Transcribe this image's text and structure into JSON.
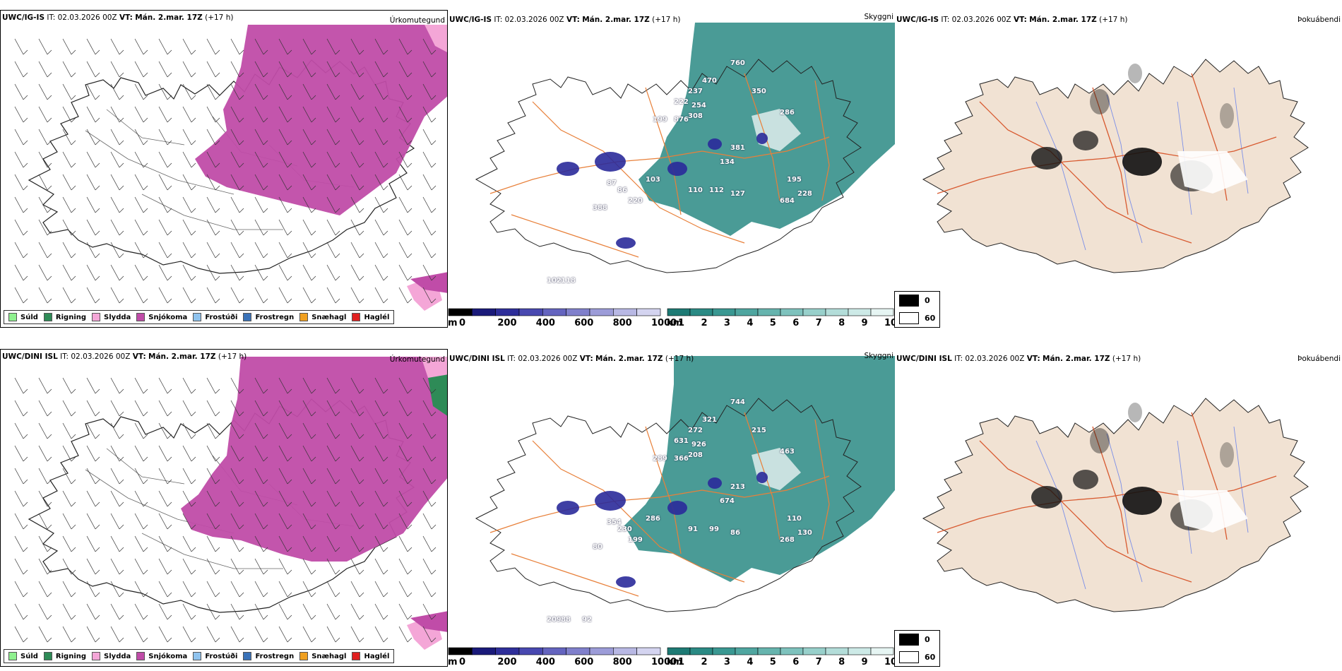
{
  "rows": [
    {
      "precip": {
        "model": "UWC/IG-IS",
        "it_label": "IT:",
        "it_value": "02.03.2026 00Z",
        "vt_label": "VT:",
        "vt_value": "Mán. 2.mar. 17Z",
        "lead": "(+17 h)",
        "title": "Úrkomutegund"
      },
      "cloud": {
        "model": "UWC/IG-IS",
        "it_label": "IT:",
        "it_value": "02.03.2026 00Z",
        "vt_label": "VT:",
        "vt_value": "Mán. 2.mar. 17Z",
        "lead": "(+17 h)",
        "title": "Skyggni",
        "labels": [
          "760",
          "470",
          "237",
          "222",
          "254",
          "350",
          "199",
          "876",
          "308",
          "286",
          "381",
          "134",
          "87",
          "103",
          "86",
          "110",
          "112",
          "127",
          "195",
          "228",
          "220",
          "684",
          "388",
          "102",
          "118"
        ]
      },
      "fog": {
        "model": "UWC/IG-IS",
        "it_label": "IT:",
        "it_value": "02.03.2026 00Z",
        "vt_label": "VT:",
        "vt_value": "Mán. 2.mar. 17Z",
        "lead": "(+17 h)",
        "title": "Þokuábendi"
      }
    },
    {
      "precip": {
        "model": "UWC/DINI ISL",
        "it_label": "IT:",
        "it_value": "02.03.2026 00Z",
        "vt_label": "VT:",
        "vt_value": "Mán. 2.mar. 17Z",
        "lead": "(+17 h)",
        "title": "Úrkomutegund"
      },
      "cloud": {
        "model": "UWC/DINI ISL",
        "it_label": "IT:",
        "it_value": "02.03.2026 00Z",
        "vt_label": "VT:",
        "vt_value": "Mán. 2.mar. 17Z",
        "lead": "(+17 h)",
        "title": "Skyggni",
        "labels": [
          "744",
          "321",
          "272",
          "631",
          "926",
          "215",
          "289",
          "366",
          "208",
          "463",
          "213",
          "674",
          "354",
          "286",
          "230",
          "91",
          "99",
          "86",
          "110",
          "130",
          "199",
          "268",
          "80",
          "209",
          "88",
          "92"
        ]
      },
      "fog": {
        "model": "UWC/DINI ISL",
        "it_label": "IT:",
        "it_value": "02.03.2026 00Z",
        "vt_label": "VT:",
        "vt_value": "Mán. 2.mar. 17Z",
        "lead": "(+17 h)",
        "title": "Þokuábendi"
      }
    }
  ],
  "precip_legend": [
    {
      "label": "Súld",
      "color": "#8ff08f"
    },
    {
      "label": "Rigning",
      "color": "#2e8b57"
    },
    {
      "label": "Slydda",
      "color": "#f4a6d7"
    },
    {
      "label": "Snjókoma",
      "color": "#c04ca8"
    },
    {
      "label": "Frostúði",
      "color": "#8fc3ee"
    },
    {
      "label": "Frostregn",
      "color": "#3a72b8"
    },
    {
      "label": "Snæhagl",
      "color": "#f0a020"
    },
    {
      "label": "Haglél",
      "color": "#e02020"
    }
  ],
  "cloud_base_scale": {
    "unit": "m",
    "ticks": [
      "0",
      "200",
      "400",
      "600",
      "800",
      "1000"
    ],
    "colors": [
      "#000000",
      "#1a1a7a",
      "#2e2e9a",
      "#4848b0",
      "#6464bf",
      "#8080cc",
      "#9c9cd8",
      "#b8b8e4",
      "#d4d4f0"
    ]
  },
  "visibility_scale": {
    "unit": "km",
    "ticks": [
      "1",
      "2",
      "3",
      "4",
      "5",
      "6",
      "7",
      "8",
      "9",
      "10"
    ],
    "colors": [
      "#1d7a74",
      "#2a8a84",
      "#3a9892",
      "#4fa6a0",
      "#66b4ae",
      "#7ec2bd",
      "#98d0cb",
      "#b3ddd9",
      "#cdeae7",
      "#e6f5f3"
    ]
  },
  "fog_key": {
    "items": [
      {
        "label": "0",
        "color": "#000000"
      },
      {
        "label": "60",
        "color": "#ffffff"
      }
    ]
  },
  "colors": {
    "snow": "#c04ca8",
    "sleet": "#f4a6d7",
    "rain": "#2e8b57",
    "vis_teal": "#2a8a84",
    "roads": "#e8803a",
    "fog_land": "#f1e2d3",
    "fog_roads": "#d85a30",
    "fog_rivers": "#7a8ee8"
  }
}
